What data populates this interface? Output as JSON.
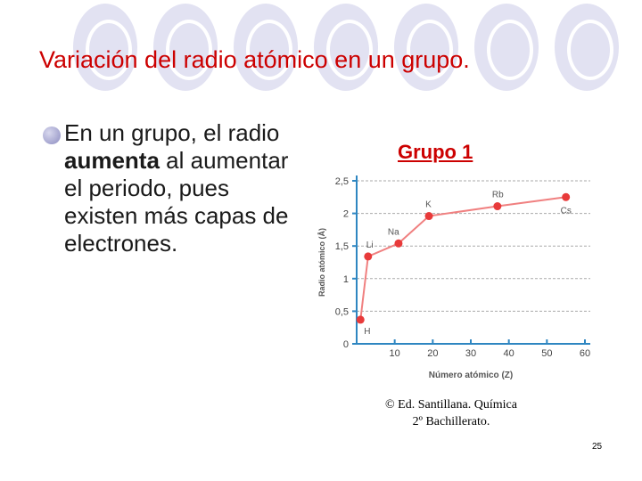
{
  "slide": {
    "title": "Variación del radio atómico en un grupo.",
    "bullet": {
      "before": "En un grupo, el radio ",
      "bold": "aumenta",
      "after": " al aumentar el periodo, pues existen más capas de electrones."
    },
    "group_label": "Grupo 1",
    "copyright_line1": "© Ed. Santillana. Química",
    "copyright_line2": "2º Bachillerato.",
    "page_number": "25"
  },
  "chart_data": {
    "type": "line",
    "xlabel": "Número atómico (Z)",
    "ylabel": "Radio atómico (Å)",
    "xlim": [
      0,
      60
    ],
    "ylim": [
      0,
      2.5
    ],
    "xticks": [
      10,
      20,
      30,
      40,
      50,
      60
    ],
    "yticks": [
      0,
      0.5,
      1,
      1.5,
      2,
      2.5
    ],
    "xtick_labels": [
      "10",
      "20",
      "30",
      "40",
      "50",
      "60"
    ],
    "ytick_labels": [
      "0",
      "0,5",
      "1",
      "1,5",
      "2",
      "2,5"
    ],
    "grid": "horizontal dashed",
    "series": [
      {
        "points": [
          {
            "label": "H",
            "x": 1,
            "y": 0.37
          },
          {
            "label": "Li",
            "x": 3,
            "y": 1.34
          },
          {
            "label": "Na",
            "x": 11,
            "y": 1.54
          },
          {
            "label": "K",
            "x": 19,
            "y": 1.96
          },
          {
            "label": "Rb",
            "x": 37,
            "y": 2.11
          },
          {
            "label": "Cs",
            "x": 55,
            "y": 2.25
          }
        ]
      }
    ],
    "colors": {
      "line": "#f08080",
      "marker": "#e83a3a",
      "axis": "#2e86c1",
      "grid": "#aaaaaa"
    }
  }
}
